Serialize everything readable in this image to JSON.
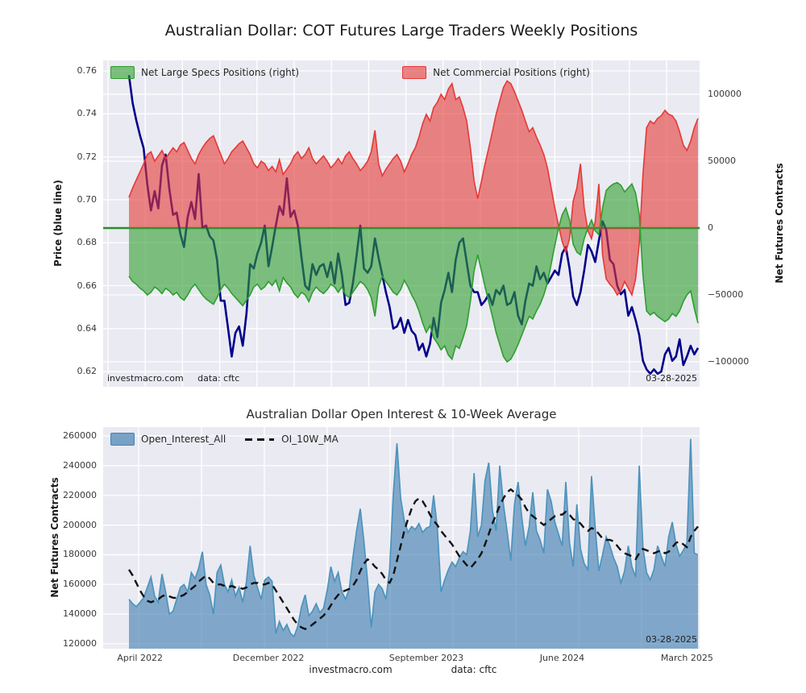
{
  "main_title": "Australian Dollar: COT Futures Large Traders Weekly Positions",
  "top_chart": {
    "legend": [
      {
        "label": "Net Large Specs Positions (right)"
      },
      {
        "label": "Net Commercial Positions (right)"
      }
    ],
    "ylabel_left": "Price (blue line)",
    "ylabel_right": "Net Futures Contracts",
    "yticks_left": [
      "0.76",
      "0.74",
      "0.72",
      "0.70",
      "0.68",
      "0.66",
      "0.64",
      "0.62"
    ],
    "yticks_right": [
      "100000",
      "50000",
      "0",
      "−50000",
      "−100000"
    ],
    "watermark": "investmacro.com",
    "source": "data: cftc",
    "date_label": "03-28-2025"
  },
  "bottom_chart": {
    "title": "Australian Dollar Open Interest & 10-Week Average",
    "legend": [
      {
        "label": "Open_Interest_All"
      },
      {
        "label": "OI_10W_MA"
      }
    ],
    "ylabel_left": "Net Futures Contracts",
    "yticks_left": [
      "260000",
      "240000",
      "220000",
      "200000",
      "180000",
      "160000",
      "140000",
      "120000"
    ],
    "xticks": [
      {
        "label": "April 2022",
        "week": 3
      },
      {
        "label": "December 2022",
        "week": 38
      },
      {
        "label": "September 2023",
        "week": 81
      },
      {
        "label": "June 2024",
        "week": 118
      },
      {
        "label": "March 2025",
        "week": 152
      }
    ],
    "date_label": "03-28-2025"
  },
  "footer": {
    "watermark": "investmacro.com",
    "source": "data: cftc"
  },
  "colors": {
    "price_line": "#00008B",
    "commercial": "#e53935",
    "specs": "#2e9e2e",
    "zero_line": "#2c8a2c",
    "open_interest_fill": "#4682B4",
    "open_interest_edge": "#4c94bc",
    "ma_line": "#111111",
    "plot_bg": "#eaeaf2",
    "grid": "#ffffff"
  },
  "chart_data": [
    {
      "type": "line+area",
      "title": "Australian Dollar: COT Futures Large Traders Weekly Positions",
      "x_unit": "week (Apr 2022 - Mar 2025)",
      "ylim_left": [
        0.613,
        0.765
      ],
      "ylim_right": [
        -122000,
        125000
      ],
      "legend_position": "upper-left-inline",
      "grid": true,
      "series": [
        {
          "name": "Price (blue line)",
          "type": "line",
          "axis": "left",
          "values": [
            0.758,
            0.745,
            0.737,
            0.73,
            0.724,
            0.707,
            0.695,
            0.704,
            0.696,
            0.716,
            0.721,
            0.705,
            0.693,
            0.694,
            0.684,
            0.678,
            0.692,
            0.699,
            0.691,
            0.712,
            0.687,
            0.688,
            0.683,
            0.681,
            0.672,
            0.653,
            0.653,
            0.64,
            0.627,
            0.638,
            0.641,
            0.632,
            0.647,
            0.67,
            0.668,
            0.675,
            0.68,
            0.688,
            0.669,
            0.678,
            0.688,
            0.697,
            0.693,
            0.71,
            0.692,
            0.695,
            0.688,
            0.673,
            0.66,
            0.658,
            0.67,
            0.665,
            0.669,
            0.67,
            0.664,
            0.671,
            0.661,
            0.675,
            0.665,
            0.651,
            0.652,
            0.661,
            0.674,
            0.688,
            0.668,
            0.666,
            0.669,
            0.682,
            0.673,
            0.665,
            0.657,
            0.65,
            0.64,
            0.641,
            0.645,
            0.638,
            0.644,
            0.639,
            0.637,
            0.63,
            0.633,
            0.627,
            0.633,
            0.645,
            0.636,
            0.652,
            0.658,
            0.666,
            0.657,
            0.672,
            0.68,
            0.682,
            0.671,
            0.66,
            0.657,
            0.657,
            0.651,
            0.653,
            0.656,
            0.651,
            0.658,
            0.656,
            0.66,
            0.651,
            0.652,
            0.657,
            0.646,
            0.642,
            0.653,
            0.661,
            0.66,
            0.669,
            0.663,
            0.666,
            0.661,
            0.664,
            0.667,
            0.665,
            0.675,
            0.678,
            0.668,
            0.655,
            0.651,
            0.657,
            0.667,
            0.679,
            0.676,
            0.671,
            0.681,
            0.69,
            0.686,
            0.672,
            0.67,
            0.66,
            0.656,
            0.658,
            0.646,
            0.65,
            0.644,
            0.637,
            0.625,
            0.621,
            0.619,
            0.621,
            0.619,
            0.62,
            0.628,
            0.631,
            0.625,
            0.627,
            0.635,
            0.623,
            0.627,
            0.632,
            0.628,
            0.631
          ]
        },
        {
          "name": "Net Commercial Positions (right)",
          "type": "area",
          "axis": "right",
          "values": [
            23000,
            30000,
            36000,
            42000,
            48000,
            55000,
            57000,
            50000,
            54000,
            58000,
            52000,
            56000,
            60000,
            57000,
            62000,
            64000,
            58000,
            52000,
            48000,
            55000,
            60000,
            64000,
            67000,
            69000,
            62000,
            55000,
            48000,
            52000,
            57000,
            60000,
            63000,
            65000,
            60000,
            55000,
            48000,
            45000,
            50000,
            48000,
            43000,
            46000,
            42000,
            51000,
            40000,
            44000,
            48000,
            54000,
            57000,
            52000,
            55000,
            60000,
            52000,
            48000,
            51000,
            54000,
            50000,
            45000,
            48000,
            52000,
            48000,
            54000,
            57000,
            52000,
            48000,
            43000,
            46000,
            50000,
            57000,
            73000,
            48000,
            39000,
            44000,
            48000,
            52000,
            55000,
            50000,
            42000,
            48000,
            55000,
            60000,
            68000,
            78000,
            85000,
            80000,
            90000,
            94000,
            100000,
            96000,
            104000,
            108000,
            96000,
            98000,
            90000,
            80000,
            60000,
            35000,
            22000,
            35000,
            48000,
            60000,
            72000,
            85000,
            95000,
            105000,
            110000,
            108000,
            102000,
            95000,
            88000,
            80000,
            72000,
            75000,
            68000,
            62000,
            55000,
            45000,
            30000,
            15000,
            2000,
            -10000,
            -18000,
            -8000,
            20000,
            30000,
            48000,
            15000,
            -2000,
            -8000,
            5000,
            33000,
            -20000,
            -38000,
            -42000,
            -45000,
            -50000,
            -47000,
            -40000,
            -45000,
            -50000,
            -38000,
            -12000,
            40000,
            75000,
            80000,
            78000,
            82000,
            84000,
            88000,
            85000,
            84000,
            80000,
            72000,
            62000,
            58000,
            65000,
            75000,
            82000
          ]
        },
        {
          "name": "Net Large Specs Positions (right)",
          "type": "area",
          "axis": "right",
          "values": [
            -36000,
            -40000,
            -42000,
            -45000,
            -47000,
            -50000,
            -48000,
            -44000,
            -46000,
            -49000,
            -45000,
            -47000,
            -50000,
            -48000,
            -52000,
            -54000,
            -50000,
            -45000,
            -42000,
            -46000,
            -50000,
            -53000,
            -55000,
            -57000,
            -52000,
            -46000,
            -42000,
            -45000,
            -49000,
            -52000,
            -55000,
            -58000,
            -54000,
            -50000,
            -44000,
            -42000,
            -46000,
            -44000,
            -40000,
            -43000,
            -39000,
            -47000,
            -37000,
            -41000,
            -44000,
            -49000,
            -52000,
            -48000,
            -50000,
            -55000,
            -48000,
            -44000,
            -47000,
            -49000,
            -46000,
            -42000,
            -44000,
            -48000,
            -44000,
            -50000,
            -52000,
            -48000,
            -44000,
            -40000,
            -42000,
            -46000,
            -52000,
            -66000,
            -44000,
            -36000,
            -40000,
            -44000,
            -48000,
            -50000,
            -46000,
            -39000,
            -44000,
            -50000,
            -55000,
            -62000,
            -71000,
            -78000,
            -73000,
            -82000,
            -86000,
            -91000,
            -88000,
            -95000,
            -98000,
            -88000,
            -90000,
            -82000,
            -73000,
            -55000,
            -32000,
            -20000,
            -32000,
            -44000,
            -55000,
            -66000,
            -78000,
            -87000,
            -96000,
            -100000,
            -98000,
            -93000,
            -87000,
            -80000,
            -73000,
            -66000,
            -68000,
            -62000,
            -57000,
            -50000,
            -41000,
            -27000,
            -13000,
            0,
            10000,
            15000,
            6000,
            -12000,
            -18000,
            -20000,
            -8000,
            0,
            6000,
            -2000,
            -5000,
            15000,
            28000,
            31000,
            33000,
            34000,
            32000,
            27000,
            30000,
            33000,
            26000,
            10000,
            -35000,
            -62000,
            -65000,
            -63000,
            -66000,
            -68000,
            -70000,
            -68000,
            -64000,
            -66000,
            -62000,
            -55000,
            -50000,
            -47000,
            -60000,
            -71000
          ]
        }
      ]
    },
    {
      "type": "area+line",
      "title": "Australian Dollar Open Interest & 10-Week Average",
      "x_unit": "week (Apr 2022 - Mar 2025)",
      "ylim": [
        118000,
        262000
      ],
      "grid": true,
      "series": [
        {
          "name": "Open_Interest_All",
          "type": "area",
          "values": [
            150000,
            147000,
            145000,
            148000,
            151000,
            158000,
            165000,
            152000,
            148000,
            167000,
            155000,
            140000,
            142000,
            150000,
            158000,
            160000,
            155000,
            168000,
            164000,
            171000,
            182000,
            160000,
            153000,
            140000,
            168000,
            173000,
            160000,
            155000,
            163000,
            152000,
            158000,
            148000,
            162000,
            186000,
            166000,
            158000,
            150000,
            163000,
            165000,
            162000,
            127000,
            135000,
            129000,
            133000,
            127000,
            125000,
            132000,
            145000,
            153000,
            139000,
            142000,
            147000,
            141000,
            144000,
            156000,
            172000,
            162000,
            168000,
            155000,
            150000,
            157000,
            178000,
            196000,
            211000,
            189000,
            162000,
            131000,
            155000,
            160000,
            157000,
            150000,
            170000,
            220000,
            255000,
            218000,
            203000,
            195000,
            199000,
            197000,
            201000,
            195000,
            198000,
            199000,
            220000,
            198000,
            155000,
            163000,
            170000,
            175000,
            172000,
            178000,
            182000,
            180000,
            196000,
            235000,
            192000,
            200000,
            230000,
            242000,
            210000,
            196000,
            240000,
            214000,
            196000,
            176000,
            214000,
            229000,
            205000,
            186000,
            199000,
            222000,
            196000,
            190000,
            181000,
            224000,
            216000,
            202000,
            194000,
            186000,
            229000,
            188000,
            172000,
            214000,
            184000,
            174000,
            170000,
            233000,
            198000,
            169000,
            180000,
            192000,
            186000,
            178000,
            172000,
            161000,
            169000,
            186000,
            172000,
            165000,
            240000,
            185000,
            168000,
            163000,
            170000,
            186000,
            179000,
            172000,
            192000,
            202000,
            187000,
            179000,
            183000,
            188000,
            258000,
            181000,
            180000
          ]
        },
        {
          "name": "OI_10W_MA",
          "type": "dashed-line",
          "values": [
            170000,
            166000,
            161000,
            156000,
            152000,
            149000,
            148000,
            149000,
            150000,
            152000,
            153000,
            152000,
            151000,
            151000,
            152000,
            153000,
            155000,
            157000,
            159000,
            162000,
            164000,
            166000,
            164000,
            161000,
            160000,
            160000,
            159000,
            158000,
            159000,
            158000,
            158000,
            157000,
            158000,
            160000,
            161000,
            161000,
            160000,
            160000,
            161000,
            160000,
            156000,
            152000,
            148000,
            144000,
            140000,
            136000,
            133000,
            131000,
            130000,
            131000,
            133000,
            135000,
            137000,
            139000,
            142000,
            146000,
            150000,
            153000,
            155000,
            156000,
            157000,
            159000,
            163000,
            169000,
            174000,
            177000,
            175000,
            172000,
            170000,
            167000,
            163000,
            161000,
            166000,
            176000,
            186000,
            196000,
            204000,
            211000,
            216000,
            218000,
            216000,
            212000,
            207000,
            203000,
            200000,
            196000,
            193000,
            190000,
            187000,
            183000,
            179000,
            176000,
            173000,
            171000,
            174000,
            177000,
            181000,
            187000,
            194000,
            201000,
            207000,
            213000,
            218000,
            222000,
            224000,
            222000,
            220000,
            217000,
            212000,
            208000,
            206000,
            204000,
            202000,
            200000,
            202000,
            204000,
            206000,
            207000,
            207000,
            209000,
            207000,
            204000,
            203000,
            201000,
            198000,
            196000,
            198000,
            197000,
            194000,
            191000,
            190000,
            190000,
            189000,
            186000,
            183000,
            181000,
            180000,
            179000,
            177000,
            181000,
            184000,
            183000,
            182000,
            181000,
            182000,
            183000,
            181000,
            182000,
            185000,
            188000,
            189000,
            187000,
            185000,
            192000,
            196000,
            199000
          ]
        }
      ]
    }
  ]
}
